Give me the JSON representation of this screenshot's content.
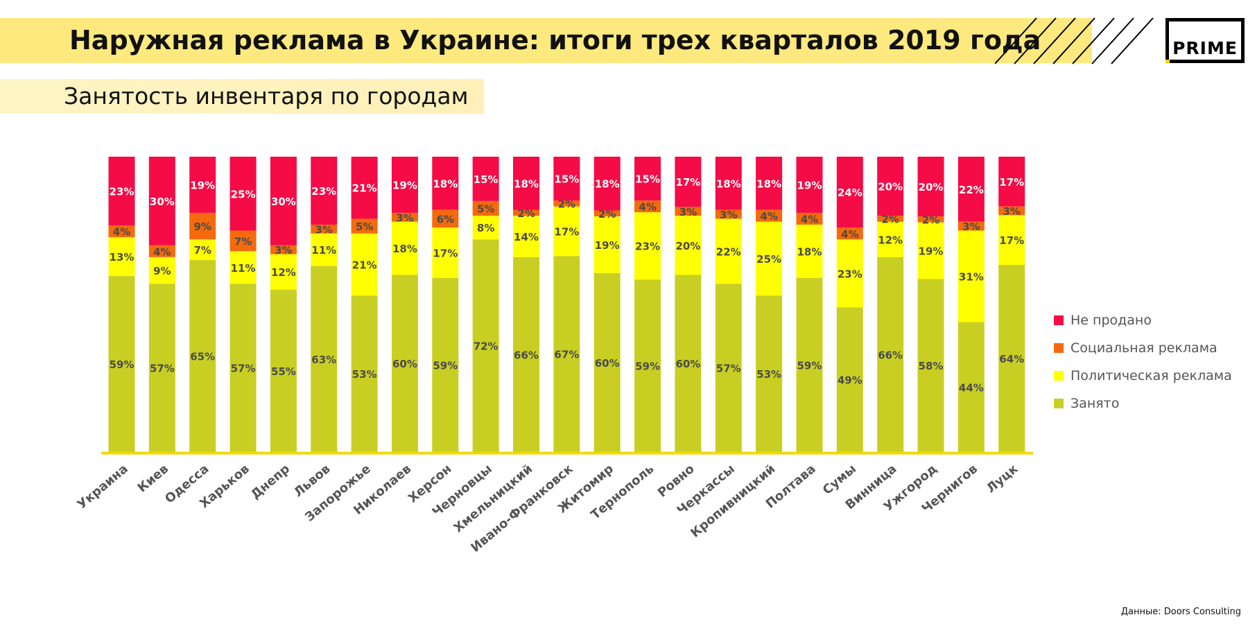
{
  "header": {
    "title": "Наружная реклама в Украине: итоги трех кварталов 2019 года",
    "logo": "PRIME",
    "subtitle": "Занятость инвентаря по городам"
  },
  "source": "Данные: Doors Consulting",
  "colors": {
    "title_band": "#fde97e",
    "axis": "#f5d800"
  },
  "chart_data": {
    "type": "bar",
    "stacked": true,
    "orientation": "vertical",
    "ylim": [
      0,
      100
    ],
    "unit": "%",
    "legend_position": "right",
    "categories": [
      "Украина",
      "Киев",
      "Одесса",
      "Харьков",
      "Днепр",
      "Львов",
      "Запорожье",
      "Николаев",
      "Херсон",
      "Черновцы",
      "Хмельницкий",
      "Ивано-Франковск",
      "Житомир",
      "Тернополь",
      "Ровно",
      "Черкассы",
      "Кропивницкий",
      "Полтава",
      "Сумы",
      "Винница",
      "Ужгород",
      "Чернигов",
      "Луцк"
    ],
    "series": [
      {
        "name": "Занято",
        "color": "#c8cf22",
        "values": [
          59,
          57,
          65,
          57,
          55,
          63,
          53,
          60,
          59,
          72,
          66,
          67,
          60,
          59,
          60,
          57,
          53,
          59,
          49,
          66,
          58,
          44,
          64
        ]
      },
      {
        "name": "Политическая реклама",
        "color": "#ffff00",
        "values": [
          13,
          9,
          7,
          11,
          12,
          11,
          21,
          18,
          17,
          8,
          14,
          17,
          19,
          23,
          20,
          22,
          25,
          18,
          23,
          12,
          19,
          31,
          17
        ]
      },
      {
        "name": "Социальная реклама",
        "color": "#f46a0c",
        "values": [
          4,
          4,
          9,
          7,
          3,
          3,
          5,
          3,
          6,
          5,
          2,
          2,
          2,
          4,
          3,
          3,
          4,
          4,
          4,
          2,
          2,
          3,
          3
        ]
      },
      {
        "name": "Не продано",
        "color": "#f50b46",
        "values": [
          23,
          30,
          19,
          25,
          30,
          23,
          21,
          19,
          18,
          15,
          18,
          15,
          18,
          15,
          17,
          18,
          18,
          19,
          24,
          20,
          20,
          22,
          17
        ]
      }
    ],
    "legend_order": [
      "Не продано",
      "Социальная реклама",
      "Политическая реклама",
      "Занято"
    ]
  }
}
